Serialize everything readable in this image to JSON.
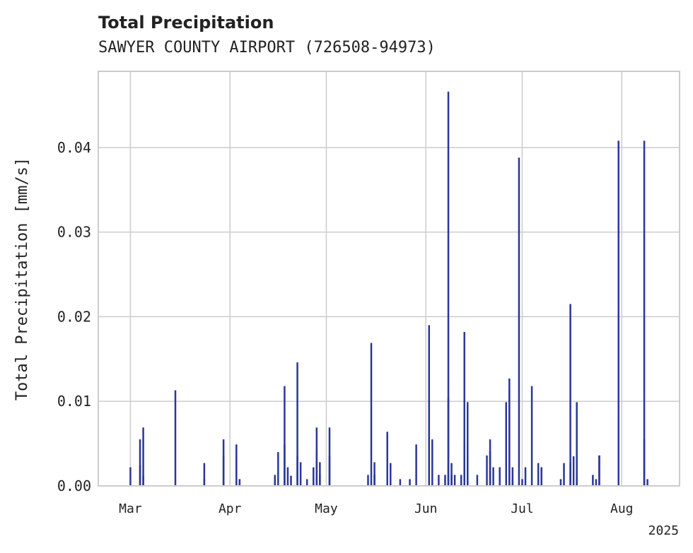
{
  "chart_data": {
    "type": "bar",
    "title": "Total Precipitation",
    "subtitle": "SAWYER COUNTY AIRPORT (726508-94973)",
    "xlabel": "",
    "ylabel": "Total Precipitation [mm/s]",
    "year_label": "2025",
    "xlim": [
      "2025-02-19",
      "2025-08-19"
    ],
    "ylim": [
      0,
      0.049
    ],
    "yticks": [
      0,
      0.01,
      0.02,
      0.03,
      0.04
    ],
    "ytick_labels": [
      "0.00",
      "0.01",
      "0.02",
      "0.03",
      "0.04"
    ],
    "xticks": [
      "2025-03-01",
      "2025-04-01",
      "2025-05-01",
      "2025-06-01",
      "2025-07-01",
      "2025-08-01"
    ],
    "xtick_labels": [
      "Mar",
      "Apr",
      "May",
      "Jun",
      "Jul",
      "Aug"
    ],
    "grid": true,
    "bar_color": "#2b3796",
    "x": [
      "2025-03-01",
      "2025-03-04",
      "2025-03-04",
      "2025-03-05",
      "2025-03-05",
      "2025-03-15",
      "2025-03-24",
      "2025-03-24",
      "2025-03-30",
      "2025-03-30",
      "2025-04-03",
      "2025-04-03",
      "2025-04-04",
      "2025-04-04",
      "2025-04-15",
      "2025-04-15",
      "2025-04-16",
      "2025-04-18",
      "2025-04-18",
      "2025-04-19",
      "2025-04-20",
      "2025-04-22",
      "2025-04-22",
      "2025-04-23",
      "2025-04-25",
      "2025-04-27",
      "2025-04-28",
      "2025-04-28",
      "2025-04-29",
      "2025-04-29",
      "2025-05-02",
      "2025-05-02",
      "2025-05-14",
      "2025-05-15",
      "2025-05-16",
      "2025-05-16",
      "2025-05-20",
      "2025-05-21",
      "2025-05-24",
      "2025-05-27",
      "2025-05-29",
      "2025-06-02",
      "2025-06-02",
      "2025-06-03",
      "2025-06-05",
      "2025-06-07",
      "2025-06-08",
      "2025-06-08",
      "2025-06-09",
      "2025-06-09",
      "2025-06-10",
      "2025-06-12",
      "2025-06-13",
      "2025-06-13",
      "2025-06-14",
      "2025-06-14",
      "2025-06-17",
      "2025-06-20",
      "2025-06-21",
      "2025-06-21",
      "2025-06-22",
      "2025-06-24",
      "2025-06-26",
      "2025-06-27",
      "2025-06-27",
      "2025-06-28",
      "2025-06-28",
      "2025-06-30",
      "2025-07-01",
      "2025-07-02",
      "2025-07-04",
      "2025-07-06",
      "2025-07-07",
      "2025-07-07",
      "2025-07-13",
      "2025-07-14",
      "2025-07-16",
      "2025-07-16",
      "2025-07-17",
      "2025-07-18",
      "2025-07-18",
      "2025-07-23",
      "2025-07-24",
      "2025-07-25",
      "2025-07-25",
      "2025-07-31",
      "2025-08-08",
      "2025-08-08",
      "2025-08-09"
    ],
    "values": [
      0.0022,
      0.0055,
      0.0025,
      0.0069,
      0.0012,
      0.0113,
      0.0027,
      0.0008,
      0.0036,
      0.0055,
      0.0049,
      0.0035,
      0.0008,
      0.0008,
      0.0013,
      0.0008,
      0.004,
      0.0118,
      0.0049,
      0.0022,
      0.0012,
      0.0146,
      0.0035,
      0.0028,
      0.0008,
      0.0022,
      0.0041,
      0.0069,
      0.0028,
      0.0013,
      0.0069,
      0.0035,
      0.0013,
      0.0169,
      0.0028,
      0.0013,
      0.0064,
      0.0027,
      0.0008,
      0.0008,
      0.0049,
      0.0104,
      0.019,
      0.0055,
      0.0013,
      0.0013,
      0.0466,
      0.0104,
      0.0027,
      0.0013,
      0.0013,
      0.0013,
      0.0049,
      0.0182,
      0.0099,
      0.0035,
      0.0013,
      0.0036,
      0.0055,
      0.0041,
      0.0022,
      0.0022,
      0.0099,
      0.0127,
      0.0113,
      0.0022,
      0.0008,
      0.0388,
      0.0008,
      0.0022,
      0.0118,
      0.0027,
      0.0022,
      0.0022,
      0.0008,
      0.0027,
      0.0027,
      0.0215,
      0.0035,
      0.0099,
      0.0008,
      0.0013,
      0.0008,
      0.0036,
      0.0036,
      0.0408,
      0.0408,
      0.0055,
      0.0008
    ]
  }
}
